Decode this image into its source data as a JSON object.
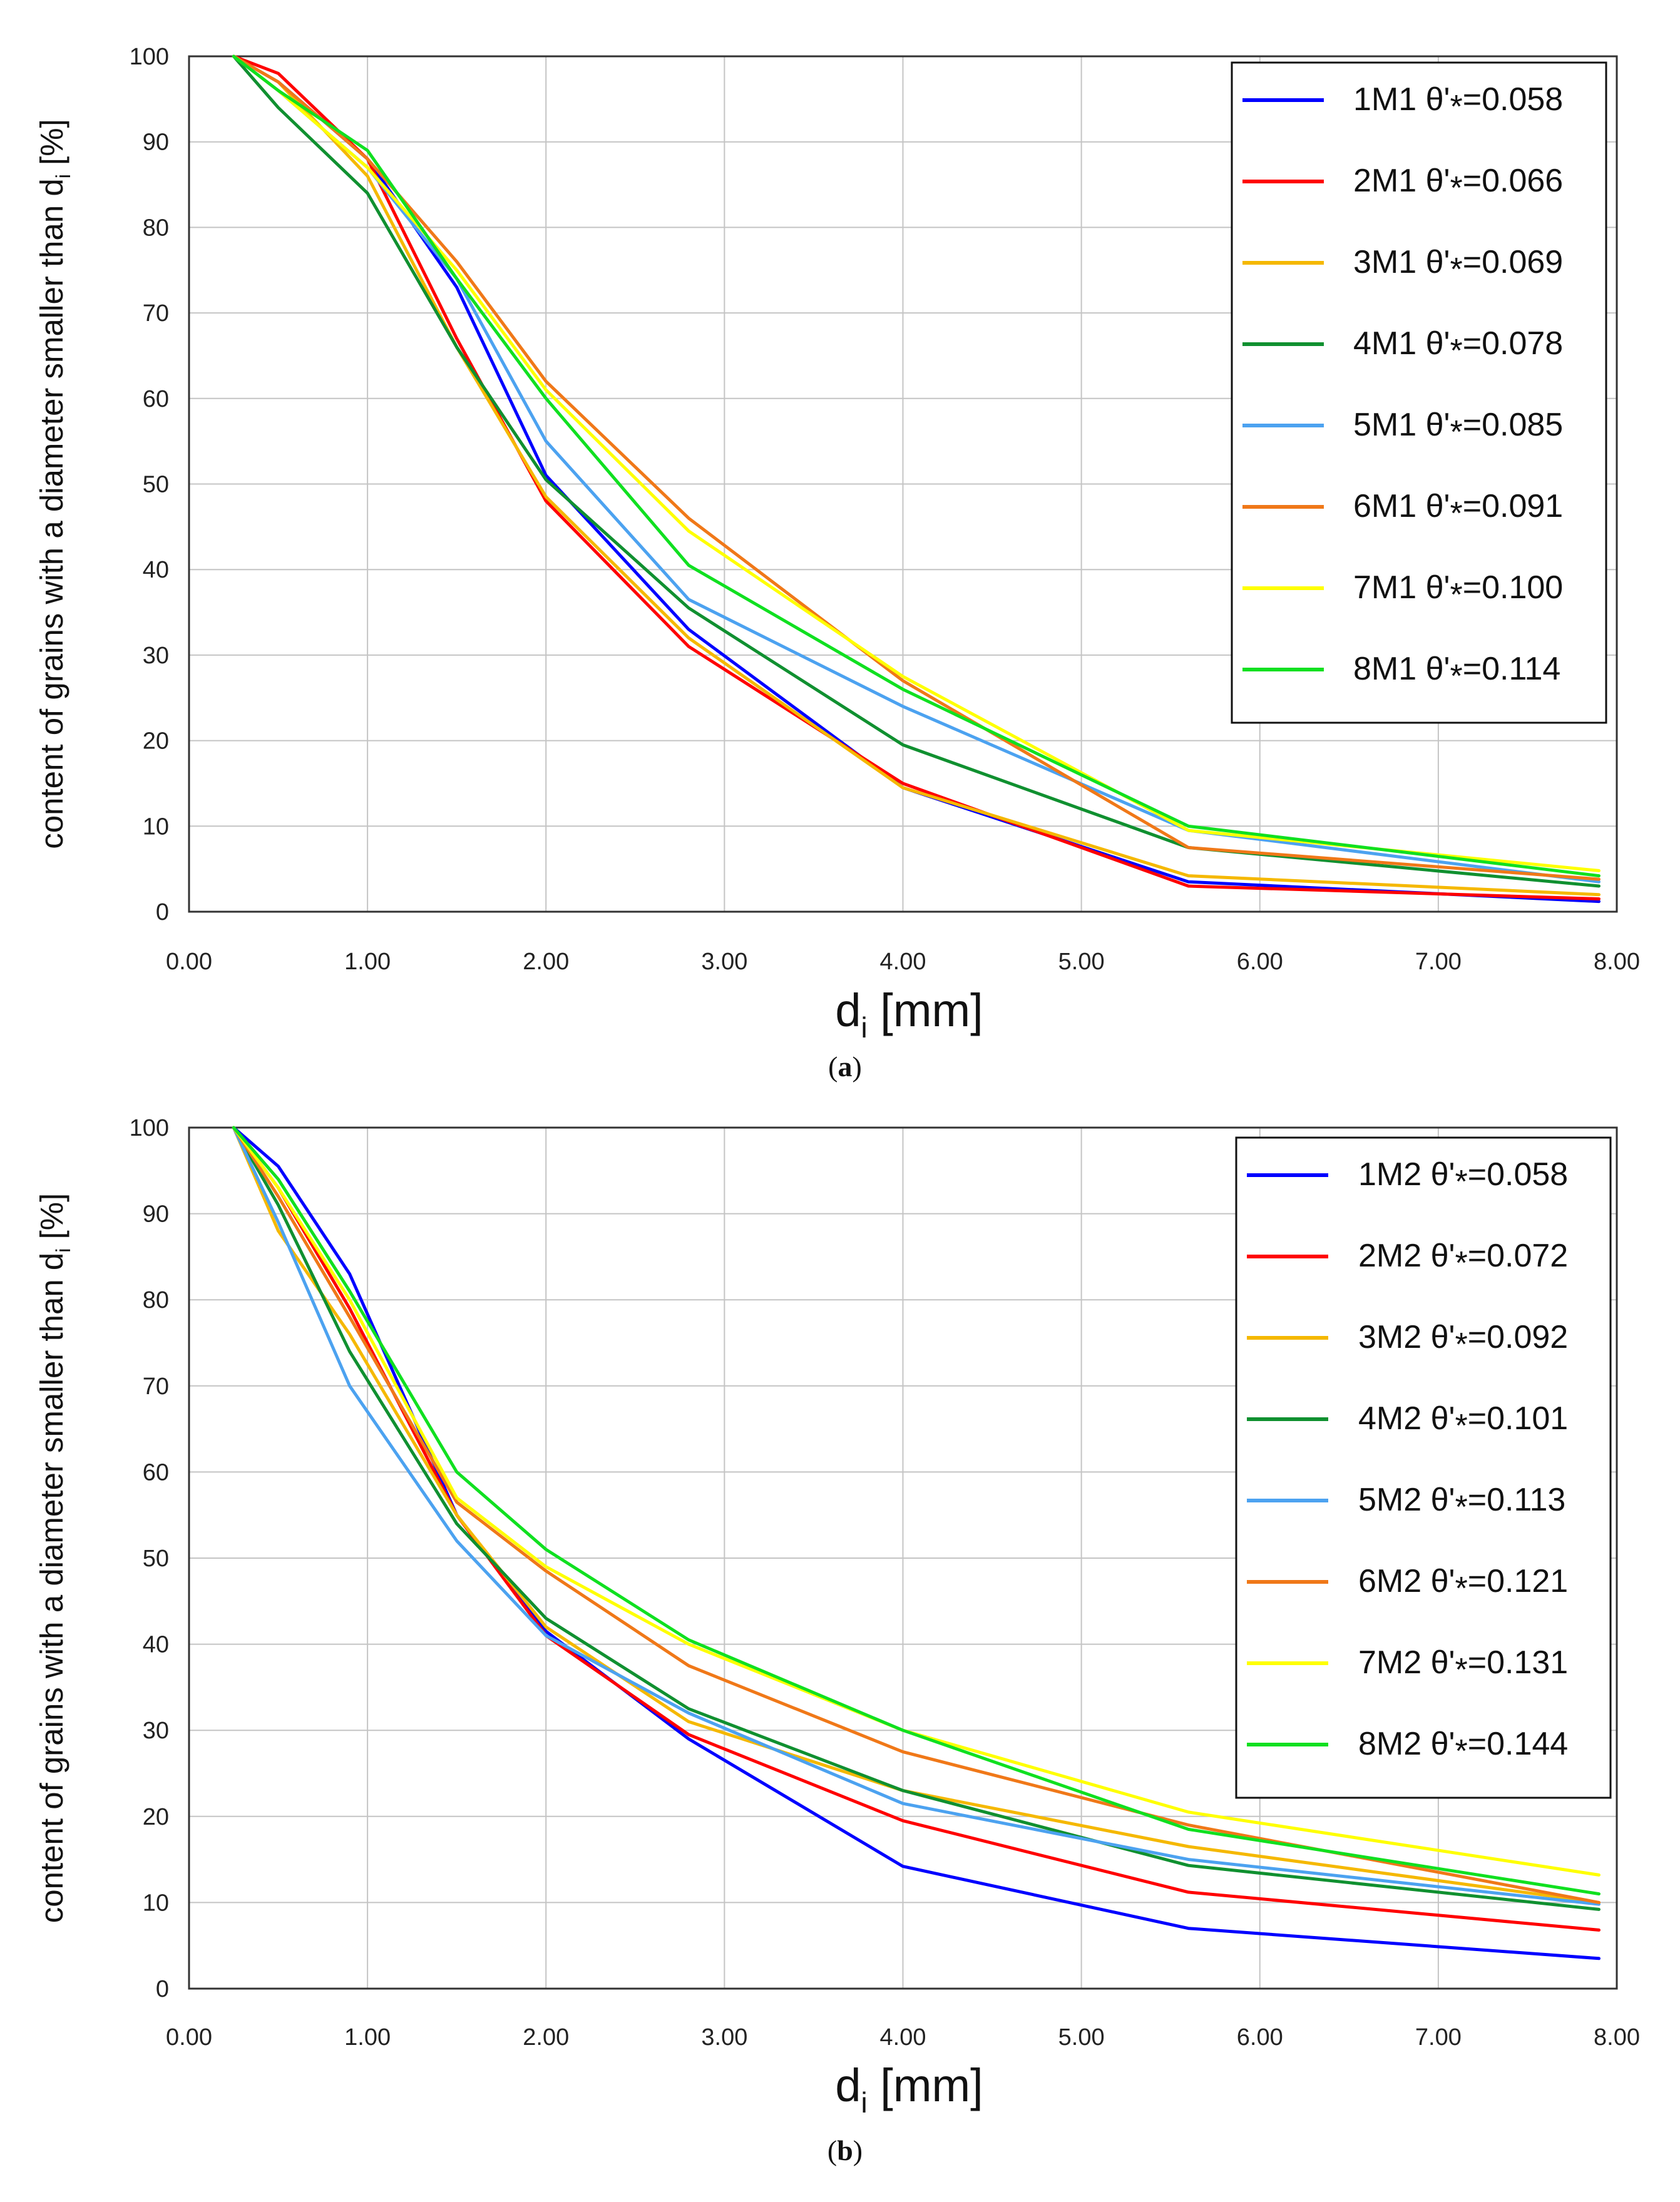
{
  "chart_data": [
    {
      "type": "line",
      "panel_label": "(a)",
      "title": "",
      "ylabel": "content of grains with a diameter smaller than d",
      "ylabel_sub": "i",
      "ylabel_unit": " [%]",
      "xlabel": "d",
      "xlabel_sub": "i",
      "xlabel_unit": "  [mm]",
      "xlim": [
        0,
        8
      ],
      "ylim": [
        0,
        100
      ],
      "xticks": [
        "0.00",
        "1.00",
        "2.00",
        "3.00",
        "4.00",
        "5.00",
        "6.00",
        "7.00",
        "8.00"
      ],
      "yticks": [
        "0",
        "10",
        "20",
        "30",
        "40",
        "50",
        "60",
        "70",
        "80",
        "90",
        "100"
      ],
      "grid": true,
      "legend_position": "top-right",
      "series": [
        {
          "name": "1M1 θ'*=0.058",
          "label_id": "1M1",
          "label_value": "=0.058",
          "color": "#0000ff",
          "x": [
            0.25,
            0.5,
            1.0,
            1.5,
            2.0,
            2.8,
            4.0,
            5.6,
            7.9
          ],
          "y": [
            100,
            97,
            88,
            73,
            51,
            33,
            14.5,
            3.5,
            1.2
          ]
        },
        {
          "name": "2M1 θ'*=0.066",
          "label_id": "2M1",
          "label_value": "=0.066",
          "color": "#ff0000",
          "x": [
            0.25,
            0.5,
            1.0,
            1.5,
            2.0,
            2.8,
            4.0,
            5.6,
            7.9
          ],
          "y": [
            100,
            98,
            88,
            67,
            48,
            31,
            15,
            3,
            1.5
          ]
        },
        {
          "name": "3M1 θ'*=0.069",
          "label_id": "3M1",
          "label_value": "=0.069",
          "color": "#f5b800",
          "x": [
            0.25,
            0.5,
            1.0,
            1.5,
            2.0,
            2.8,
            4.0,
            5.6,
            7.9
          ],
          "y": [
            100,
            97,
            86,
            66,
            48.5,
            32,
            14.5,
            4.2,
            2
          ]
        },
        {
          "name": "4M1 θ'*=0.078",
          "label_id": "4M1",
          "label_value": "=0.078",
          "color": "#109030",
          "x": [
            0.25,
            0.5,
            1.0,
            1.5,
            2.0,
            2.8,
            4.0,
            5.6,
            7.9
          ],
          "y": [
            100,
            94,
            84,
            66,
            50.5,
            35.5,
            19.5,
            7.5,
            3
          ]
        },
        {
          "name": "5M1 θ'*=0.085",
          "label_id": "5M1",
          "label_value": "=0.085",
          "color": "#4ca2f0",
          "x": [
            0.25,
            0.5,
            1.0,
            1.5,
            2.0,
            2.8,
            4.0,
            5.6,
            7.9
          ],
          "y": [
            100,
            96,
            87,
            74,
            55,
            36.5,
            24,
            9.5,
            3.5
          ]
        },
        {
          "name": "6M1 θ'*=0.091",
          "label_id": "6M1",
          "label_value": "=0.091",
          "color": "#f07818",
          "x": [
            0.25,
            0.5,
            1.0,
            1.5,
            2.0,
            2.8,
            4.0,
            5.6,
            7.9
          ],
          "y": [
            100,
            97,
            88,
            76,
            62,
            46,
            27,
            7.5,
            3.8
          ]
        },
        {
          "name": "7M1 θ'*=0.100",
          "label_id": "7M1",
          "label_value": "=0.100",
          "color": "#ffff00",
          "x": [
            0.25,
            0.5,
            1.0,
            1.5,
            2.0,
            2.8,
            4.0,
            5.6,
            7.9
          ],
          "y": [
            100,
            96,
            87,
            75,
            61,
            44.5,
            27.5,
            9.5,
            4.8
          ]
        },
        {
          "name": "8M1 θ'*=0.114",
          "label_id": "8M1",
          "label_value": "=0.114",
          "color": "#10e020",
          "x": [
            0.25,
            0.5,
            1.0,
            1.5,
            2.0,
            2.8,
            4.0,
            5.6,
            7.9
          ],
          "y": [
            100,
            96,
            89,
            74,
            60,
            40.5,
            26,
            10,
            4.2
          ]
        }
      ]
    },
    {
      "type": "line",
      "panel_label": "(b)",
      "title": "",
      "ylabel": "content of grains with a diameter smaller than d",
      "ylabel_sub": "i",
      "ylabel_unit": " [%]",
      "xlabel": "d",
      "xlabel_sub": "i",
      "xlabel_unit": "  [mm]",
      "xlim": [
        0,
        8
      ],
      "ylim": [
        0,
        100
      ],
      "xticks": [
        "0.00",
        "1.00",
        "2.00",
        "3.00",
        "4.00",
        "5.00",
        "6.00",
        "7.00",
        "8.00"
      ],
      "yticks": [
        "0",
        "10",
        "20",
        "30",
        "40",
        "50",
        "60",
        "70",
        "80",
        "90",
        "100"
      ],
      "grid": true,
      "legend_position": "top-right",
      "series": [
        {
          "name": "1M2 θ'*=0.058",
          "label_id": "1M2",
          "label_value": "=0.058",
          "color": "#0000ff",
          "x": [
            0.25,
            0.5,
            0.9,
            1.5,
            2.0,
            2.8,
            4.0,
            5.6,
            7.9
          ],
          "y": [
            100,
            95.5,
            83,
            55,
            41.5,
            29,
            14.2,
            7,
            3.5
          ]
        },
        {
          "name": "2M2 θ'*=0.072",
          "label_id": "2M2",
          "label_value": "=0.072",
          "color": "#ff0000",
          "x": [
            0.25,
            0.5,
            0.9,
            1.5,
            2.0,
            2.8,
            4.0,
            5.6,
            7.9
          ],
          "y": [
            100,
            93,
            79,
            55,
            41,
            29.5,
            19.5,
            11.2,
            6.8
          ]
        },
        {
          "name": "3M2 θ'*=0.092",
          "label_id": "3M2",
          "label_value": "=0.092",
          "color": "#f5b800",
          "x": [
            0.25,
            0.5,
            0.9,
            1.5,
            2.0,
            2.8,
            4.0,
            5.6,
            7.9
          ],
          "y": [
            100,
            88,
            76,
            55,
            42,
            31,
            23,
            16.5,
            10
          ]
        },
        {
          "name": "4M2 θ'*=0.101",
          "label_id": "4M2",
          "label_value": "=0.101",
          "color": "#109030",
          "x": [
            0.25,
            0.5,
            0.9,
            1.5,
            2.0,
            2.8,
            4.0,
            5.6,
            7.9
          ],
          "y": [
            100,
            91,
            74,
            54,
            43,
            32.5,
            23,
            14.3,
            9.2
          ]
        },
        {
          "name": "5M2 θ'*=0.113",
          "label_id": "5M2",
          "label_value": "=0.113",
          "color": "#4ca2f0",
          "x": [
            0.25,
            0.5,
            0.9,
            1.5,
            2.0,
            2.8,
            4.0,
            5.6,
            7.9
          ],
          "y": [
            100,
            89,
            70,
            52,
            41,
            32,
            21.5,
            15,
            9.8
          ]
        },
        {
          "name": "6M2 θ'*=0.121",
          "label_id": "6M2",
          "label_value": "=0.121",
          "color": "#f07818",
          "x": [
            0.25,
            0.5,
            0.9,
            1.5,
            2.0,
            2.8,
            4.0,
            5.6,
            7.9
          ],
          "y": [
            100,
            92,
            78,
            56.5,
            48.5,
            37.5,
            27.5,
            19,
            10
          ]
        },
        {
          "name": "7M2 θ'*=0.131",
          "label_id": "7M2",
          "label_value": "=0.131",
          "color": "#ffff00",
          "x": [
            0.25,
            0.5,
            0.9,
            1.5,
            2.0,
            2.8,
            4.0,
            5.6,
            7.9
          ],
          "y": [
            100,
            93,
            80,
            57,
            49,
            40,
            30,
            20.5,
            13.2
          ]
        },
        {
          "name": "8M2 θ'*=0.144",
          "label_id": "8M2",
          "label_value": "=0.144",
          "color": "#10e020",
          "x": [
            0.25,
            0.5,
            0.9,
            1.5,
            2.0,
            2.8,
            4.0,
            5.6,
            7.9
          ],
          "y": [
            100,
            94,
            81,
            60,
            51,
            40.5,
            30,
            18.5,
            11
          ]
        }
      ]
    }
  ]
}
